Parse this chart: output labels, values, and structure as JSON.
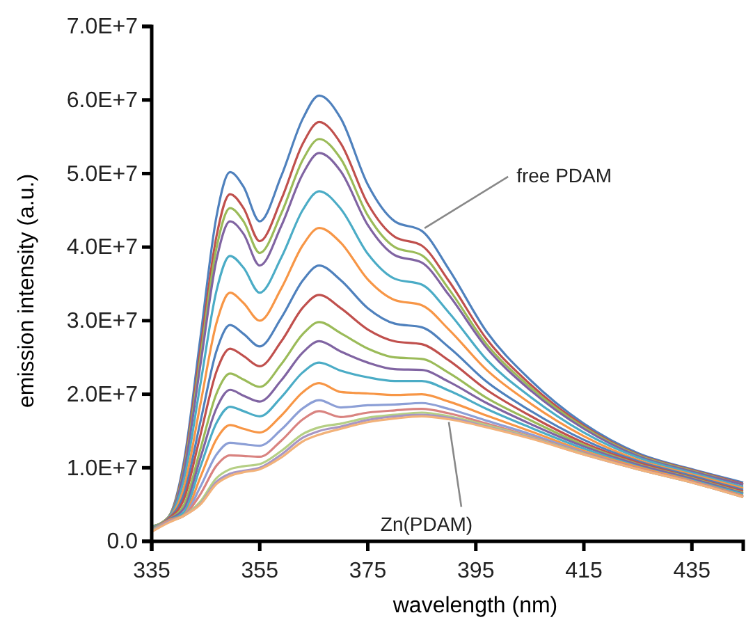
{
  "chart_data": {
    "type": "line",
    "xlabel": "wavelength (nm)",
    "ylabel": "emission intensity (a.u.)",
    "xlim": [
      335,
      444.5
    ],
    "xticks": [
      335,
      355,
      375,
      395,
      415,
      435
    ],
    "ylim": [
      0,
      70000000.0
    ],
    "yticks": [
      {
        "value": 0,
        "label": "0.0"
      },
      {
        "value": 10000000.0,
        "label": "1.0E+7"
      },
      {
        "value": 20000000.0,
        "label": "2.0E+7"
      },
      {
        "value": 30000000.0,
        "label": "3.0E+7"
      },
      {
        "value": 40000000.0,
        "label": "4.0E+7"
      },
      {
        "value": 50000000.0,
        "label": "5.0E+7"
      },
      {
        "value": 60000000.0,
        "label": "6.0E+7"
      },
      {
        "value": 70000000.0,
        "label": "7.0E+7"
      }
    ],
    "grid": false,
    "marker": "none",
    "line_style": "solid",
    "x": [
      335,
      338,
      341,
      344,
      347,
      349.5,
      352,
      355,
      359,
      363,
      366,
      370,
      375,
      380,
      385,
      390,
      397,
      405,
      415,
      425,
      435,
      444.5
    ],
    "series": [
      {
        "color": "#4f81bd",
        "values": [
          2000000.0,
          3200000.0,
          11000000.0,
          27600000.0,
          44200000.0,
          50200000.0,
          48200000.0,
          43500000.0,
          49700000.0,
          57500000.0,
          60600000.0,
          57500000.0,
          48500000.0,
          43500000.0,
          42200000.0,
          37000000.0,
          28500000.0,
          22000000.0,
          16000000.0,
          12000000.0,
          9800000.0,
          8000000.0
        ]
      },
      {
        "color": "#c0504d",
        "values": [
          2000000.0,
          3200000.0,
          10400000.0,
          26000000.0,
          41500000.0,
          47200000.0,
          45300000.0,
          40800000.0,
          46500000.0,
          54100000.0,
          57000000.0,
          54100000.0,
          45900000.0,
          41400000.0,
          40200000.0,
          35400000.0,
          27500000.0,
          21400000.0,
          15700000.0,
          11800000.0,
          9700000.0,
          7800000.0
        ]
      },
      {
        "color": "#9bbb59",
        "values": [
          2000000.0,
          3200000.0,
          10000000.0,
          24900000.0,
          39900000.0,
          45300000.0,
          43500000.0,
          39200000.0,
          44600000.0,
          51900000.0,
          54700000.0,
          52000000.0,
          44300000.0,
          40000000.0,
          38900000.0,
          34300000.0,
          26800000.0,
          21000000.0,
          15500000.0,
          11700000.0,
          9600000.0,
          7700000.0
        ]
      },
      {
        "color": "#8064a2",
        "values": [
          1900000.0,
          3100000.0,
          9600000.0,
          23900000.0,
          38300000.0,
          43500000.0,
          41800000.0,
          37500000.0,
          42900000.0,
          50000000.0,
          52800000.0,
          50300000.0,
          43000000.0,
          38900000.0,
          37900000.0,
          33500000.0,
          26300000.0,
          20600000.0,
          15300000.0,
          11600000.0,
          9500000.0,
          7700000.0
        ]
      },
      {
        "color": "#4bacc6",
        "values": [
          1900000.0,
          3100000.0,
          8500000.0,
          21300000.0,
          34100000.0,
          38800000.0,
          37200000.0,
          33800000.0,
          38600000.0,
          45100000.0,
          47600000.0,
          45200000.0,
          39100000.0,
          35700000.0,
          34900000.0,
          31100000.0,
          24700000.0,
          19700000.0,
          14800000.0,
          11400000.0,
          9300000.0,
          7400000.0
        ]
      },
      {
        "color": "#f79646",
        "values": [
          1800000.0,
          3000000.0,
          7400000.0,
          18600000.0,
          29700000.0,
          33800000.0,
          32400000.0,
          30000000.0,
          34400000.0,
          40300000.0,
          42600000.0,
          40600000.0,
          35600000.0,
          32800000.0,
          32100000.0,
          28800000.0,
          23300000.0,
          18800000.0,
          14300000.0,
          11100000.0,
          9100000.0,
          7200000.0
        ]
      },
      {
        "color": "#4f81bd",
        "values": [
          1800000.0,
          3000000.0,
          6500000.0,
          16200000.0,
          25900000.0,
          29400000.0,
          28200000.0,
          26500000.0,
          30400000.0,
          35500000.0,
          37500000.0,
          35500000.0,
          31700000.0,
          29600000.0,
          29100000.0,
          26400000.0,
          21700000.0,
          17800000.0,
          13800000.0,
          10900000.0,
          8900000.0,
          7000000.0
        ]
      },
      {
        "color": "#c0504d",
        "values": [
          1700000.0,
          3000000.0,
          5800000.0,
          14400000.0,
          23100000.0,
          26200000.0,
          25200000.0,
          23800000.0,
          27200000.0,
          31800000.0,
          33500000.0,
          31700000.0,
          28800000.0,
          27200000.0,
          26800000.0,
          24600000.0,
          20600000.0,
          17100000.0,
          13400000.0,
          10700000.0,
          8700000.0,
          6800000.0
        ]
      },
      {
        "color": "#9bbb59",
        "values": [
          1700000.0,
          2900000.0,
          5000000.0,
          12500000.0,
          20100000.0,
          22800000.0,
          22000000.0,
          21000000.0,
          24100000.0,
          28200000.0,
          29800000.0,
          28300000.0,
          26200000.0,
          25000000.0,
          24800000.0,
          22900000.0,
          19500000.0,
          16500000.0,
          13100000.0,
          10500000.0,
          8600000.0,
          6600000.0
        ]
      },
      {
        "color": "#8064a2",
        "values": [
          1600000.0,
          2900000.0,
          4500000.0,
          11300000.0,
          18100000.0,
          20600000.0,
          19800000.0,
          19000000.0,
          21900000.0,
          25700000.0,
          27200000.0,
          25800000.0,
          24300000.0,
          23400000.0,
          23300000.0,
          21700000.0,
          18800000.0,
          16000000.0,
          12900000.0,
          10400000.0,
          8500000.0,
          6500000.0
        ]
      },
      {
        "color": "#4bacc6",
        "values": [
          1600000.0,
          2800000.0,
          4000000.0,
          10100000.0,
          16100000.0,
          18300000.0,
          17700000.0,
          17000000.0,
          19600000.0,
          23000000.0,
          24300000.0,
          23200000.0,
          22300000.0,
          21800000.0,
          21800000.0,
          20500000.0,
          18000000.0,
          15500000.0,
          12600000.0,
          10200000.0,
          8300000.0,
          6400000.0
        ]
      },
      {
        "color": "#f79646",
        "values": [
          1500000.0,
          2800000.0,
          3600000.0,
          8700000.0,
          13900000.0,
          15800000.0,
          15300000.0,
          14800000.0,
          17100000.0,
          20300000.0,
          21500000.0,
          20300000.0,
          20100000.0,
          19900000.0,
          20000000.0,
          19000000.0,
          17100000.0,
          15000000.0,
          12300000.0,
          10100000.0,
          8200000.0,
          6200000.0
        ]
      },
      {
        "color": "#8c9fd6",
        "values": [
          1500000.0,
          2700000.0,
          3500000.0,
          7400000.0,
          11800000.0,
          13400000.0,
          13200000.0,
          13000000.0,
          15200000.0,
          18100000.0,
          19200000.0,
          18200000.0,
          18500000.0,
          18600000.0,
          18800000.0,
          18000000.0,
          16400000.0,
          14600000.0,
          12100000.0,
          9900000.0,
          8100000.0,
          6100000.0
        ]
      },
      {
        "color": "#d98380",
        "values": [
          1400000.0,
          2700000.0,
          3500000.0,
          6400000.0,
          10300000.0,
          11700000.0,
          11600000.0,
          11500000.0,
          13700000.0,
          16600000.0,
          17700000.0,
          16900000.0,
          17500000.0,
          17800000.0,
          18000000.0,
          17400000.0,
          16000000.0,
          14300000.0,
          12000000.0,
          9900000.0,
          8100000.0,
          6100000.0
        ]
      },
      {
        "color": "#b5cf84",
        "values": [
          1400000.0,
          2600000.0,
          3500000.0,
          5400000.0,
          8600000.0,
          9800000.0,
          10200000.0,
          10500000.0,
          12300000.0,
          14600000.0,
          15500000.0,
          16000000.0,
          16800000.0,
          17200000.0,
          17500000.0,
          17000000.0,
          15800000.0,
          14200000.0,
          11900000.0,
          9800000.0,
          8000000.0,
          6000000.0
        ]
      },
      {
        "color": "#a796c4",
        "values": [
          1300000.0,
          2600000.0,
          3500000.0,
          5100000.0,
          8100000.0,
          9200000.0,
          9600000.0,
          10000000.0,
          11800000.0,
          14100000.0,
          15000000.0,
          15600000.0,
          16500000.0,
          17000000.0,
          17200000.0,
          16800000.0,
          15600000.0,
          14100000.0,
          11800000.0,
          9800000.0,
          8000000.0,
          6000000.0
        ]
      },
      {
        "color": "#f2b27a",
        "values": [
          1300000.0,
          2500000.0,
          3500000.0,
          5000000.0,
          7800000.0,
          8900000.0,
          9400000.0,
          9800000.0,
          11400000.0,
          13600000.0,
          14500000.0,
          15300000.0,
          16200000.0,
          16700000.0,
          17000000.0,
          16600000.0,
          15500000.0,
          14000000.0,
          11800000.0,
          9800000.0,
          8000000.0,
          6000000.0
        ]
      }
    ],
    "annotations": [
      {
        "text": "free PDAM",
        "x": 385,
        "y": 42200000.0
      },
      {
        "text": "Zn(PDAM)",
        "x": 390,
        "y": 16600000.0
      }
    ]
  }
}
